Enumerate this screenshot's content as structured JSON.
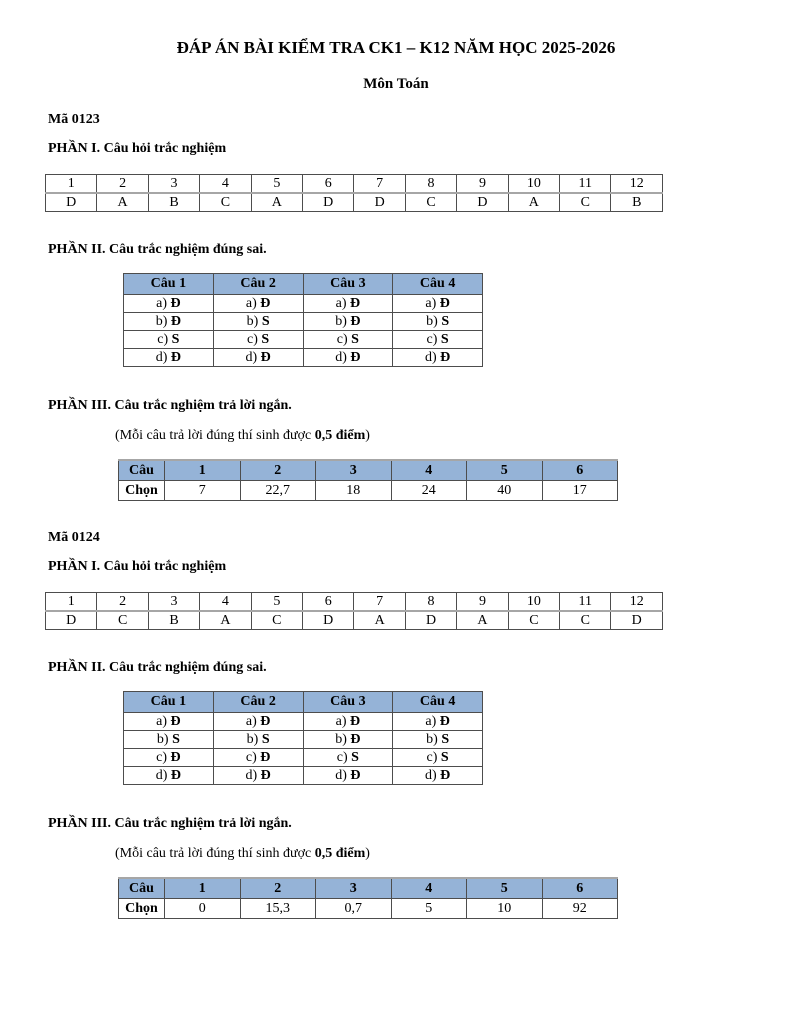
{
  "document": {
    "title": "ĐÁP ÁN BÀI KIỂM TRA CK1 – K12 NĂM HỌC 2025-2026",
    "subtitle": "Môn Toán"
  },
  "labels": {
    "part1": "PHẦN I. Câu hỏi trắc nghiệm",
    "part2": "PHẦN II. Câu trắc nghiệm đúng sai.",
    "part3": "PHẦN III. Câu trắc nghiệm trả lời ngắn.",
    "note_prefix": "(Mỗi câu trả lời đúng thí sinh được ",
    "note_bold": "0,5 điểm",
    "note_suffix": ")"
  },
  "colors": {
    "table_header_fill": "#95B3D7",
    "table_border": "#4D4D4D"
  },
  "sections": [
    {
      "code": "Mã 0123",
      "mc": {
        "numbers": [
          "1",
          "2",
          "3",
          "4",
          "5",
          "6",
          "7",
          "8",
          "9",
          "10",
          "11",
          "12"
        ],
        "answers": [
          "D",
          "A",
          "B",
          "C",
          "A",
          "D",
          "D",
          "C",
          "D",
          "A",
          "C",
          "B"
        ]
      },
      "tf": {
        "headers": [
          "Câu 1",
          "Câu 2",
          "Câu 3",
          "Câu 4"
        ],
        "rows": [
          {
            "label": "a)",
            "values": [
              "Đ",
              "Đ",
              "Đ",
              "Đ"
            ]
          },
          {
            "label": "b)",
            "values": [
              "Đ",
              "S",
              "Đ",
              "S"
            ]
          },
          {
            "label": "c)",
            "values": [
              "S",
              "S",
              "S",
              "S"
            ]
          },
          {
            "label": "d)",
            "values": [
              "Đ",
              "Đ",
              "Đ",
              "Đ"
            ]
          }
        ]
      },
      "short": {
        "corner": "Câu",
        "row_label": "Chọn",
        "numbers": [
          "1",
          "2",
          "3",
          "4",
          "5",
          "6"
        ],
        "values": [
          "7",
          "22,7",
          "18",
          "24",
          "40",
          "17"
        ]
      }
    },
    {
      "code": "Mã 0124",
      "mc": {
        "numbers": [
          "1",
          "2",
          "3",
          "4",
          "5",
          "6",
          "7",
          "8",
          "9",
          "10",
          "11",
          "12"
        ],
        "answers": [
          "D",
          "C",
          "B",
          "A",
          "C",
          "D",
          "A",
          "D",
          "A",
          "C",
          "C",
          "D"
        ]
      },
      "tf": {
        "headers": [
          "Câu 1",
          "Câu 2",
          "Câu 3",
          "Câu 4"
        ],
        "rows": [
          {
            "label": "a)",
            "values": [
              "Đ",
              "Đ",
              "Đ",
              "Đ"
            ]
          },
          {
            "label": "b)",
            "values": [
              "S",
              "S",
              "Đ",
              "S"
            ]
          },
          {
            "label": "c)",
            "values": [
              "Đ",
              "Đ",
              "S",
              "S"
            ]
          },
          {
            "label": "d)",
            "values": [
              "Đ",
              "Đ",
              "Đ",
              "Đ"
            ]
          }
        ]
      },
      "short": {
        "corner": "Câu",
        "row_label": "Chọn",
        "numbers": [
          "1",
          "2",
          "3",
          "4",
          "5",
          "6"
        ],
        "values": [
          "0",
          "15,3",
          "0,7",
          "5",
          "10",
          "92"
        ]
      }
    }
  ]
}
